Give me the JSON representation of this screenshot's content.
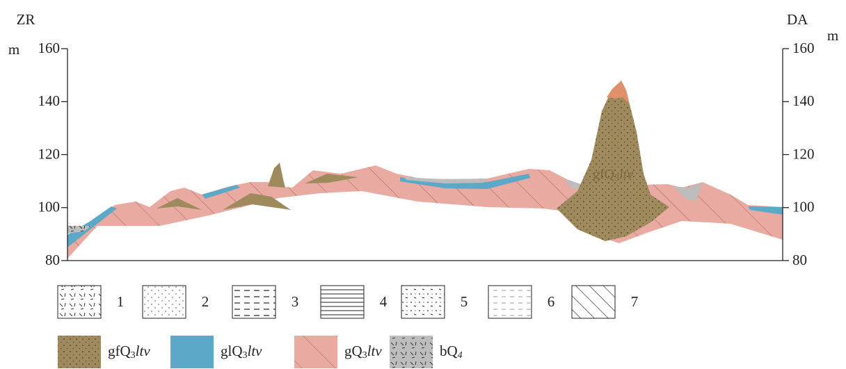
{
  "left_axis": {
    "label": "ZR",
    "unit": "m",
    "ticks": [
      80,
      100,
      120,
      140,
      160
    ]
  },
  "right_axis": {
    "label": "DA",
    "unit": "m",
    "ticks": [
      80,
      100,
      120,
      140,
      160
    ]
  },
  "section_label": {
    "code": "gfQ",
    "sub": "3",
    "age": "ltv"
  },
  "legend_symbols": [
    "1",
    "2",
    "3",
    "4",
    "5",
    "6",
    "7"
  ],
  "legend_units": [
    {
      "code": "gfQ",
      "sub": "3",
      "age": "ltv"
    },
    {
      "code": "glQ",
      "sub": "3",
      "age": "ltv"
    },
    {
      "code": "gQ",
      "sub": "3",
      "age": "ltv"
    },
    {
      "code": "bQ",
      "sub": "4"
    }
  ]
}
